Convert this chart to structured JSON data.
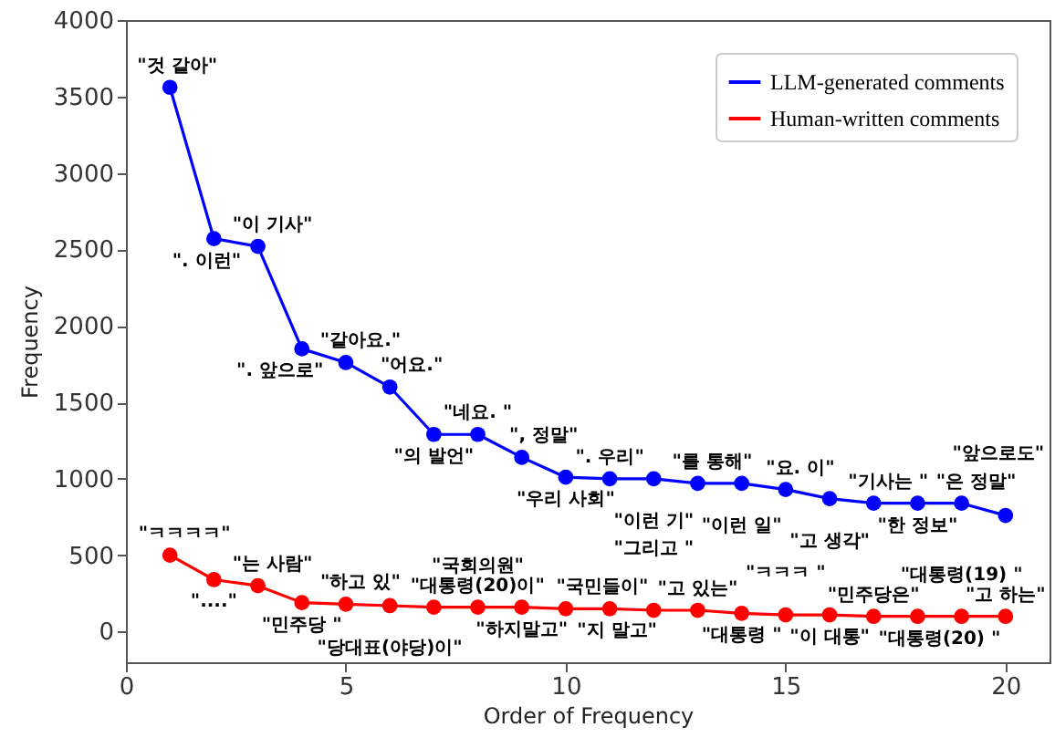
{
  "chart_data": {
    "type": "line",
    "xlabel": "Order of Frequency",
    "ylabel": "Frequency",
    "x": [
      1,
      2,
      3,
      4,
      5,
      6,
      7,
      8,
      9,
      10,
      11,
      12,
      13,
      14,
      15,
      16,
      17,
      18,
      19,
      20
    ],
    "xlim": [
      0,
      21
    ],
    "xticks": [
      0,
      5,
      10,
      15,
      20
    ],
    "ylim": [
      -200,
      4000
    ],
    "yticks": [
      0,
      500,
      1000,
      1500,
      2000,
      2500,
      3000,
      3500,
      4000
    ],
    "grid": false,
    "legend": "top right",
    "marker": "circle",
    "line_style": "solid",
    "series": [
      {
        "name": "LLM-generated comments",
        "color": "#0000ff",
        "values": [
          3560,
          2570,
          2520,
          1850,
          1760,
          1600,
          1290,
          1290,
          1140,
          1010,
          1000,
          1000,
          970,
          970,
          930,
          870,
          840,
          840,
          840,
          760
        ]
      },
      {
        "name": "Human-written comments",
        "color": "#ff0000",
        "values": [
          500,
          340,
          300,
          190,
          180,
          170,
          160,
          160,
          160,
          150,
          150,
          140,
          140,
          120,
          110,
          110,
          100,
          100,
          100,
          100
        ]
      }
    ],
    "annotations": [
      {
        "text": "\"것 같아\"",
        "x": 1,
        "y": 3560
      },
      {
        "text": "\". 이런\"",
        "x": 2,
        "y": 2570
      },
      {
        "text": "\"이 기사\"",
        "x": 3,
        "y": 2520
      },
      {
        "text": "\". 앞으로\"",
        "x": 4,
        "y": 1850
      },
      {
        "text": "\"같아요.\"",
        "x": 5,
        "y": 1760
      },
      {
        "text": "\"어요.\"",
        "x": 6,
        "y": 1600
      },
      {
        "text": "\"의 발언\"",
        "x": 7,
        "y": 1290
      },
      {
        "text": "\"네요. \"",
        "x": 8,
        "y": 1290
      },
      {
        "text": "\", 정말\"",
        "x": 9,
        "y": 1140
      },
      {
        "text": "\"우리 사회\"",
        "x": 10,
        "y": 1010
      },
      {
        "text": "\". 우리\"",
        "x": 11,
        "y": 1000
      },
      {
        "text": "\"이런 기\"",
        "x": 12,
        "y": 1000
      },
      {
        "text": "\"를 통해\"",
        "x": 13,
        "y": 970
      },
      {
        "text": "\"이런 일\"",
        "x": 14,
        "y": 970
      },
      {
        "text": "\"요. 이\"",
        "x": 15,
        "y": 930
      },
      {
        "text": "\"고 생각\"",
        "x": 16,
        "y": 870
      },
      {
        "text": "\"기사는 \"",
        "x": 17,
        "y": 840
      },
      {
        "text": "\"한 정보\"",
        "x": 18,
        "y": 840
      },
      {
        "text": "\"은 정말\"",
        "x": 19,
        "y": 840
      },
      {
        "text": "\"앞으로도\"",
        "x": 20,
        "y": 760
      },
      {
        "text": "\"ㅋㅋㅋㅋ\"",
        "x": 1,
        "y": 500
      },
      {
        "text": "\"....\"",
        "x": 2,
        "y": 340
      },
      {
        "text": "\"는 사람\"",
        "x": 3,
        "y": 300
      },
      {
        "text": "\"민주당 \"",
        "x": 4,
        "y": 190
      },
      {
        "text": "\"하고 있\"",
        "x": 5,
        "y": 180
      },
      {
        "text": "\"당대표(야당)이\"",
        "x": 6,
        "y": 170
      },
      {
        "text": "\"대통령(20)이\"",
        "x": 7,
        "y": 160
      },
      {
        "text": "\"국회의원\"",
        "x": 8,
        "y": 160
      },
      {
        "text": "\"하지말고\"",
        "x": 9,
        "y": 160
      },
      {
        "text": "\"국민들이\"",
        "x": 10,
        "y": 150
      },
      {
        "text": "\"지 말고\"",
        "x": 11,
        "y": 150
      },
      {
        "text": "\"그리고 \"",
        "x": 12,
        "y": 140
      },
      {
        "text": "\"고 있는\"",
        "x": 13,
        "y": 140
      },
      {
        "text": "\"대통령 \"",
        "x": 14,
        "y": 120
      },
      {
        "text": "\"ㅋㅋㅋ \"",
        "x": 15,
        "y": 110
      },
      {
        "text": "\"이 대통\"",
        "x": 16,
        "y": 110
      },
      {
        "text": "\"민주당은\"",
        "x": 17,
        "y": 100
      },
      {
        "text": "\"대통령(20) \"",
        "x": 18,
        "y": 100
      },
      {
        "text": "\"대통령(19) \"",
        "x": 19,
        "y": 100
      },
      {
        "text": "\"고 하는\"",
        "x": 20,
        "y": 100
      }
    ]
  }
}
